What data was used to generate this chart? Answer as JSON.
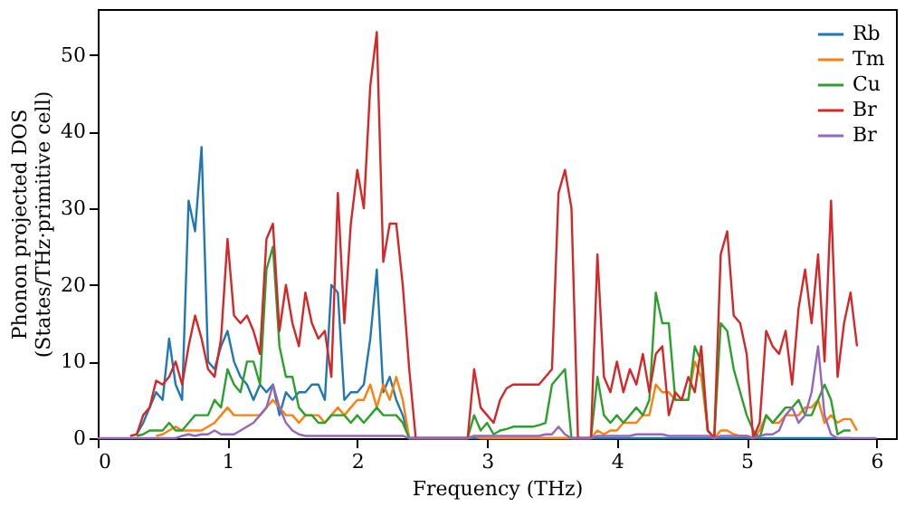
{
  "chart_data": {
    "type": "line",
    "xlabel": "Frequency (THz)",
    "ylabel": "Phonon projected DOS\n(States/THz·primitive cell)",
    "x": [
      0,
      0.05,
      0.1,
      0.15,
      0.2,
      0.25,
      0.3,
      0.35,
      0.4,
      0.45,
      0.5,
      0.55,
      0.6,
      0.65,
      0.7,
      0.75,
      0.8,
      0.85,
      0.9,
      0.95,
      1,
      1.05,
      1.1,
      1.15,
      1.2,
      1.25,
      1.3,
      1.35,
      1.4,
      1.45,
      1.5,
      1.55,
      1.6,
      1.65,
      1.7,
      1.75,
      1.8,
      1.85,
      1.9,
      1.95,
      2,
      2.05,
      2.1,
      2.15,
      2.2,
      2.25,
      2.3,
      2.35,
      2.4,
      2.45,
      2.5,
      2.55,
      2.6,
      2.65,
      2.7,
      2.75,
      2.8,
      2.85,
      2.9,
      2.95,
      3,
      3.05,
      3.1,
      3.15,
      3.2,
      3.25,
      3.3,
      3.35,
      3.4,
      3.45,
      3.5,
      3.55,
      3.6,
      3.65,
      3.7,
      3.75,
      3.8,
      3.85,
      3.9,
      3.95,
      4,
      4.05,
      4.1,
      4.15,
      4.2,
      4.25,
      4.3,
      4.35,
      4.4,
      4.45,
      4.5,
      4.55,
      4.6,
      4.65,
      4.7,
      4.75,
      4.8,
      4.85,
      4.9,
      4.95,
      5,
      5.05,
      5.1,
      5.15,
      5.2,
      5.25,
      5.3,
      5.35,
      5.4,
      5.45,
      5.5,
      5.55,
      5.6,
      5.65,
      5.7,
      5.75,
      5.8,
      5.85,
      5.9,
      5.95,
      6
    ],
    "series": [
      {
        "name": "Rb",
        "color": "#1f77b4",
        "values": [
          null,
          null,
          null,
          null,
          null,
          null,
          0.5,
          2,
          4,
          6,
          5,
          13,
          7,
          5,
          31,
          27,
          38,
          10,
          9,
          12,
          14,
          10,
          8,
          7,
          5,
          7,
          6,
          7,
          3,
          6,
          5,
          6,
          6,
          7,
          7,
          5,
          20,
          19,
          5,
          6,
          6,
          7,
          13,
          22,
          6,
          8,
          5,
          3,
          0,
          0,
          0,
          0,
          0,
          0,
          0,
          0,
          0,
          0,
          0,
          0,
          0,
          0,
          0,
          0,
          0,
          0,
          0,
          0,
          0,
          0,
          0,
          0,
          0,
          0,
          0,
          0,
          0,
          0,
          0,
          0,
          0,
          0,
          0,
          0,
          0,
          0,
          0,
          0,
          0,
          0,
          0,
          0,
          0,
          0,
          0,
          0,
          0,
          0,
          0,
          0,
          0,
          0,
          0,
          0,
          0,
          0,
          0,
          0,
          0,
          0,
          0,
          0,
          0,
          0,
          0,
          0,
          0,
          null,
          null,
          null,
          null
        ]
      },
      {
        "name": "Tm",
        "color": "#ff7f0e",
        "values": [
          null,
          null,
          null,
          null,
          null,
          null,
          null,
          null,
          null,
          0.3,
          0.5,
          1,
          1.5,
          1,
          1,
          1,
          1,
          1.5,
          2,
          3,
          4,
          3,
          3,
          3,
          3,
          3,
          4,
          5,
          4,
          3,
          3,
          2,
          3,
          3,
          3,
          2,
          3,
          4,
          3,
          4,
          5,
          5,
          7,
          4,
          7,
          5,
          8,
          5,
          0,
          0,
          0,
          0,
          0,
          0,
          0,
          0,
          0,
          0,
          0.3,
          0,
          0,
          0,
          0,
          0,
          0,
          0,
          0,
          0,
          0,
          0,
          0,
          0,
          0,
          0,
          0,
          0,
          0,
          1,
          0.5,
          1,
          1,
          2,
          2,
          2,
          3,
          3,
          7,
          6,
          6,
          5,
          5,
          5,
          10,
          8,
          1,
          0,
          1,
          1,
          0.5,
          0.3,
          0.3,
          0,
          1,
          3,
          2,
          2,
          3,
          3,
          3,
          4,
          4,
          5,
          2,
          3,
          2,
          2.5,
          2.5,
          1,
          null,
          null,
          null
        ]
      },
      {
        "name": "Cu",
        "color": "#2ca02c",
        "values": [
          null,
          null,
          null,
          null,
          null,
          null,
          0.3,
          0.5,
          1,
          1,
          1,
          2,
          1,
          1,
          2,
          3,
          3,
          3,
          5,
          4,
          9,
          7,
          6,
          10,
          10,
          7,
          22,
          25,
          12,
          8,
          8,
          4,
          3,
          3,
          2,
          2,
          3,
          3,
          3,
          2,
          3,
          2,
          3,
          4,
          3,
          3,
          3,
          2,
          0,
          0,
          0,
          0,
          0,
          0,
          0,
          0,
          0,
          0,
          3,
          1,
          2,
          0.5,
          1,
          1.2,
          1.5,
          1.5,
          1.5,
          1.5,
          1.7,
          2,
          7,
          8,
          9,
          0,
          0,
          0,
          0,
          8,
          3,
          2,
          3,
          2,
          3,
          4,
          3,
          5,
          19,
          15,
          15,
          5,
          5,
          5,
          12,
          10,
          1,
          0,
          15,
          14,
          9,
          6,
          3,
          1,
          0,
          3,
          2,
          3,
          4,
          4,
          5,
          3,
          3,
          5,
          7,
          5,
          0.5,
          1,
          1,
          null,
          null,
          null,
          null
        ]
      },
      {
        "name": "Br",
        "color": "#d62728",
        "values": [
          null,
          null,
          null,
          null,
          null,
          0.3,
          0.5,
          3,
          4,
          7.5,
          7,
          8,
          10,
          7,
          12,
          16,
          13,
          9,
          8,
          13,
          26,
          16,
          15,
          16,
          14,
          11,
          26,
          28,
          14,
          20,
          15,
          12,
          19,
          15,
          13,
          14,
          8,
          32,
          15,
          28,
          35,
          30,
          46,
          53,
          23,
          28,
          28,
          20,
          9,
          0,
          0,
          0,
          0,
          0,
          0,
          0,
          0,
          0,
          9,
          4,
          3,
          2,
          5,
          6.5,
          7,
          7,
          7,
          7,
          7,
          8,
          9,
          32,
          35,
          30,
          0,
          0,
          0,
          24,
          8,
          6,
          10,
          6,
          9,
          7,
          11,
          6,
          11,
          12,
          3,
          6,
          5,
          8,
          6,
          12,
          1,
          0,
          24,
          27,
          16,
          15,
          11,
          0,
          2,
          14,
          12,
          11,
          14,
          7,
          17,
          22,
          15,
          24,
          10,
          31,
          8,
          15,
          19,
          12,
          null,
          null,
          null
        ]
      },
      {
        "name": "Br",
        "color": "#9467bd",
        "values": [
          0,
          0,
          0,
          0,
          0,
          0,
          0,
          0,
          0,
          0,
          0,
          0,
          0,
          0.3,
          0.5,
          0.3,
          0.5,
          0.5,
          1,
          0.5,
          0.5,
          0.5,
          1,
          1.5,
          2,
          3,
          4,
          7,
          4,
          2,
          1,
          0.5,
          0.3,
          0.3,
          0.3,
          0.3,
          0.3,
          0.3,
          0.3,
          0.3,
          0.3,
          0.3,
          0.3,
          0.3,
          0.3,
          0.3,
          0.3,
          0.3,
          0,
          0,
          0,
          0,
          0,
          0,
          0,
          0,
          0,
          0,
          0.3,
          0.3,
          0.3,
          0.3,
          0.3,
          0.3,
          0.3,
          0.3,
          0.3,
          0.3,
          0.3,
          0.5,
          0.5,
          1.5,
          0.5,
          0,
          0,
          0,
          0,
          0.3,
          0.3,
          0.3,
          0.3,
          0.3,
          0.3,
          0.5,
          0.5,
          0.5,
          0.5,
          0.5,
          0.3,
          0.3,
          0.3,
          0.3,
          0.3,
          0.3,
          0.3,
          0,
          0.3,
          0.3,
          0.3,
          0.3,
          0.3,
          0,
          0.3,
          0.5,
          0.5,
          1,
          3,
          4,
          2,
          3,
          6,
          12,
          3,
          0.5,
          0,
          0,
          0,
          0,
          0,
          0,
          0
        ]
      }
    ],
    "xlim": [
      0,
      6.15
    ],
    "xticks": [
      0,
      1,
      2,
      3,
      4,
      5,
      6
    ],
    "ylim": [
      0,
      56
    ],
    "yticks": [
      0,
      10,
      20,
      30,
      40,
      50
    ],
    "grid": false,
    "legend": "top right",
    "marker": "none",
    "line_style": "solid"
  }
}
